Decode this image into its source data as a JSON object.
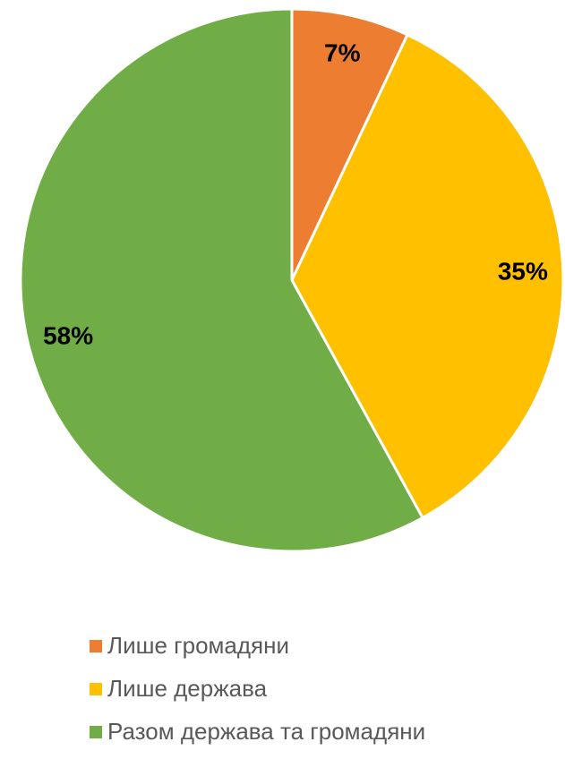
{
  "chart_data": {
    "type": "pie",
    "categories": [
      "Лише громадяни",
      "Лише держава",
      "Разом держава та громадяни"
    ],
    "values": [
      7,
      35,
      58
    ],
    "value_labels": [
      "7%",
      "35%",
      "58%"
    ],
    "colors": [
      "#ED7D31",
      "#FFC000",
      "#70AD47"
    ]
  }
}
